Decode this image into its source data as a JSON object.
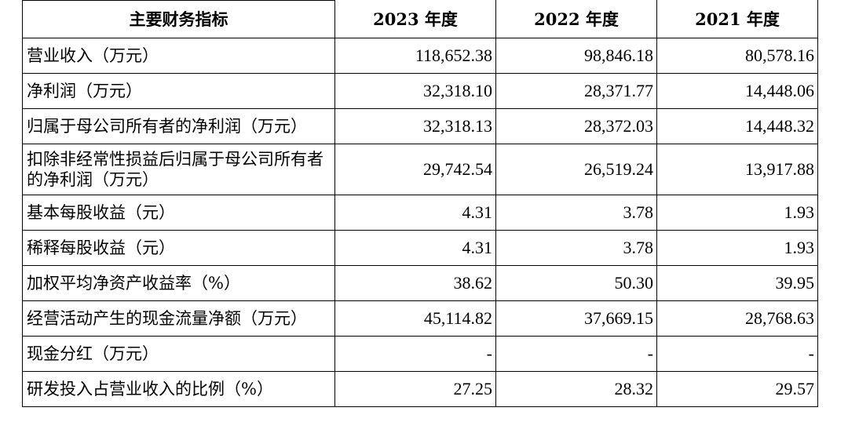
{
  "table": {
    "header": {
      "metric": "主要财务指标",
      "y2023": "2023 年度",
      "y2022": "2022 年度",
      "y2021": "2021 年度"
    },
    "rows": [
      {
        "label": "营业收入（万元）",
        "y2023": "118,652.38",
        "y2022": "98,846.18",
        "y2021": "80,578.16"
      },
      {
        "label": "净利润（万元）",
        "y2023": "32,318.10",
        "y2022": "28,371.77",
        "y2021": "14,448.06"
      },
      {
        "label": "归属于母公司所有者的净利润（万元）",
        "y2023": "32,318.13",
        "y2022": "28,372.03",
        "y2021": "14,448.32"
      },
      {
        "label": "扣除非经常性损益后归属于母公司所有者的净利润（万元）",
        "y2023": "29,742.54",
        "y2022": "26,519.24",
        "y2021": "13,917.88"
      },
      {
        "label": "基本每股收益（元）",
        "y2023": "4.31",
        "y2022": "3.78",
        "y2021": "1.93"
      },
      {
        "label": "稀释每股收益（元）",
        "y2023": "4.31",
        "y2022": "3.78",
        "y2021": "1.93"
      },
      {
        "label": "加权平均净资产收益率（%）",
        "y2023": "38.62",
        "y2022": "50.30",
        "y2021": "39.95"
      },
      {
        "label": "经营活动产生的现金流量净额（万元）",
        "y2023": "45,114.82",
        "y2022": "37,669.15",
        "y2021": "28,768.63"
      },
      {
        "label": "现金分红（万元）",
        "y2023": "-",
        "y2022": "-",
        "y2021": "-"
      },
      {
        "label": "研发投入占营业收入的比例（%）",
        "y2023": "27.25",
        "y2022": "28.32",
        "y2021": "29.57"
      }
    ]
  }
}
